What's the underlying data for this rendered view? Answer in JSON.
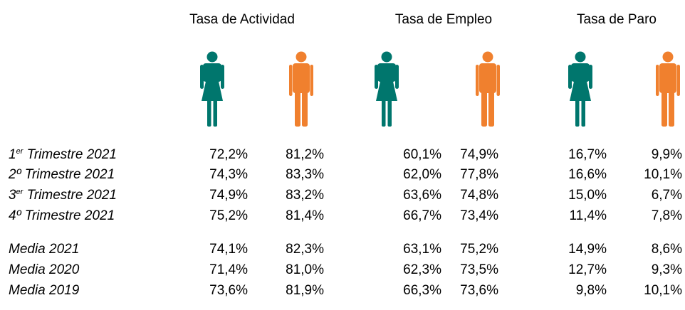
{
  "header": {
    "columns": [
      "Tasa de Actividad",
      "Tasa de Empleo",
      "Tasa de Paro"
    ]
  },
  "table": {
    "rows": [
      {
        "num": "1",
        "sup": "er",
        "name": " Trimestre 2021",
        "values": [
          "72,2%",
          "81,2%",
          "60,1%",
          "74,9%",
          "16,7%",
          "9,9%"
        ]
      },
      {
        "name": "2º Trimestre 2021",
        "values": [
          "74,3%",
          "83,3%",
          "62,0%",
          "77,8%",
          "16,6%",
          "10,1%"
        ]
      },
      {
        "num": "3",
        "sup": "er",
        "name": " Trimestre 2021",
        "values": [
          "74,9%",
          "83,2%",
          "63,6%",
          "74,8%",
          "15,0%",
          "6,7%"
        ]
      },
      {
        "name": "4º Trimestre 2021",
        "values": [
          "75,2%",
          "81,4%",
          "66,7%",
          "73,4%",
          "11,4%",
          "7,8%"
        ]
      },
      {
        "name": "Media 2021",
        "values": [
          "74,1%",
          "82,3%",
          "63,1%",
          "75,2%",
          "14,9%",
          "8,6%"
        ]
      },
      {
        "name": "Media 2020",
        "values": [
          "71,4%",
          "81,0%",
          "62,3%",
          "73,5%",
          "12,7%",
          "9,3%"
        ]
      },
      {
        "name": "Media 2019",
        "values": [
          "73,6%",
          "81,9%",
          "66,3%",
          "73,6%",
          "9,8%",
          "10,1%"
        ]
      }
    ]
  }
}
